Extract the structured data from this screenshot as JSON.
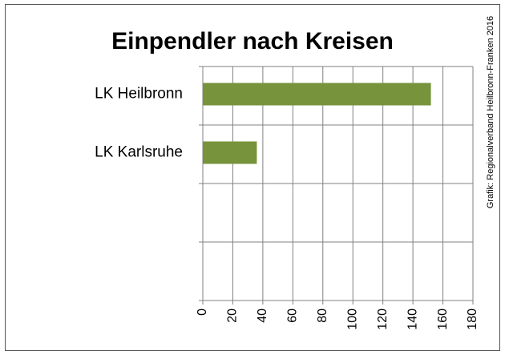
{
  "chart_data": {
    "type": "bar",
    "orientation": "horizontal",
    "title": "Einpendler nach Kreisen",
    "annotation": "Grafik: Regionalverband Heilbronn-Franken 2016",
    "categories": [
      "LK Heilbronn",
      "LK Karlsruhe",
      null,
      null
    ],
    "values": [
      152,
      36,
      null,
      null
    ],
    "color": "#77933c",
    "xlim": [
      0,
      180
    ],
    "xticks": [
      0,
      20,
      40,
      60,
      80,
      100,
      120,
      140,
      160,
      180
    ],
    "grid": true
  }
}
